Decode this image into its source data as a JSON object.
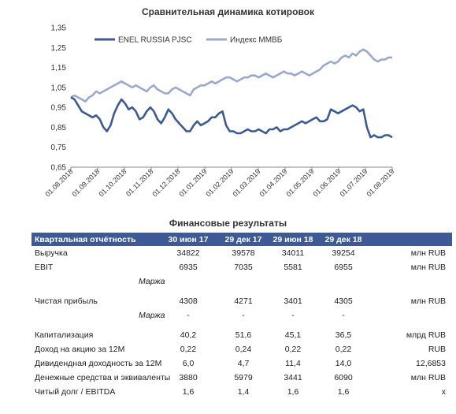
{
  "chart_data": {
    "type": "line",
    "title": "Сравнительная динамика котировок",
    "ylim": [
      0.65,
      1.35
    ],
    "y_ticks": [
      "0,65",
      "0,75",
      "0,85",
      "0,95",
      "1,05",
      "1,15",
      "1,25",
      "1,35"
    ],
    "x_ticks": [
      "01.08.2018",
      "01.09.2018",
      "01.10.2018",
      "01.11.2018",
      "01.12.2018",
      "01.01.2019",
      "01.02.2019",
      "01.03.2019",
      "01.04.2019",
      "01.05.2019",
      "01.06.2019",
      "01.07.2019",
      "01.08.2019"
    ],
    "legend_position": "top",
    "grid": false,
    "series": [
      {
        "name": "ENEL RUSSIA PJSC",
        "color": "#3d5a96",
        "values": [
          1.0,
          0.99,
          0.96,
          0.93,
          0.92,
          0.91,
          0.9,
          0.91,
          0.89,
          0.85,
          0.83,
          0.86,
          0.92,
          0.96,
          0.99,
          0.97,
          0.94,
          0.95,
          0.93,
          0.89,
          0.9,
          0.93,
          0.95,
          0.93,
          0.89,
          0.87,
          0.9,
          0.94,
          0.92,
          0.89,
          0.87,
          0.85,
          0.83,
          0.83,
          0.86,
          0.88,
          0.86,
          0.87,
          0.88,
          0.9,
          0.9,
          0.92,
          0.93,
          0.86,
          0.83,
          0.83,
          0.82,
          0.82,
          0.83,
          0.84,
          0.83,
          0.83,
          0.84,
          0.83,
          0.82,
          0.84,
          0.84,
          0.85,
          0.83,
          0.84,
          0.84,
          0.85,
          0.86,
          0.87,
          0.88,
          0.87,
          0.88,
          0.89,
          0.9,
          0.88,
          0.88,
          0.89,
          0.94,
          0.93,
          0.92,
          0.93,
          0.94,
          0.95,
          0.96,
          0.95,
          0.93,
          0.94,
          0.85,
          0.8,
          0.81,
          0.8,
          0.8,
          0.81,
          0.81,
          0.8
        ]
      },
      {
        "name": "Индекс ММВБ",
        "color": "#9aa9cf",
        "values": [
          1.0,
          1.01,
          1.0,
          0.99,
          0.98,
          1.0,
          1.01,
          1.03,
          1.02,
          1.03,
          1.04,
          1.05,
          1.06,
          1.07,
          1.08,
          1.07,
          1.06,
          1.05,
          1.06,
          1.05,
          1.04,
          1.03,
          1.05,
          1.06,
          1.04,
          1.03,
          1.02,
          1.02,
          1.04,
          1.05,
          1.04,
          1.03,
          1.02,
          1.01,
          1.04,
          1.05,
          1.06,
          1.06,
          1.07,
          1.08,
          1.07,
          1.08,
          1.09,
          1.1,
          1.1,
          1.09,
          1.08,
          1.09,
          1.1,
          1.1,
          1.11,
          1.11,
          1.1,
          1.11,
          1.12,
          1.11,
          1.1,
          1.11,
          1.12,
          1.13,
          1.12,
          1.12,
          1.11,
          1.12,
          1.13,
          1.12,
          1.11,
          1.12,
          1.13,
          1.14,
          1.16,
          1.17,
          1.18,
          1.17,
          1.18,
          1.2,
          1.21,
          1.2,
          1.22,
          1.21,
          1.23,
          1.24,
          1.23,
          1.21,
          1.19,
          1.18,
          1.19,
          1.19,
          1.2,
          1.2
        ]
      }
    ]
  },
  "financials": {
    "title": "Финансовые результаты",
    "header": [
      "Квартальная отчётность",
      "30 июн 17",
      "29 дек 17",
      "29 июн 18",
      "29 дек 18",
      ""
    ],
    "rows": [
      {
        "name": "Выручка",
        "values": [
          "34822",
          "39578",
          "34011",
          "39254"
        ],
        "unit": "млн RUB"
      },
      {
        "name": "EBIT",
        "values": [
          "6935",
          "7035",
          "5581",
          "6955"
        ],
        "unit": "млн RUB"
      },
      {
        "name": "Маржа",
        "values": [
          "",
          "",
          "",
          ""
        ],
        "unit": "",
        "italic": true
      },
      {
        "name": "Чистая прибыль",
        "values": [
          "4308",
          "4271",
          "3401",
          "4305"
        ],
        "unit": "млн RUB"
      },
      {
        "name": "Маржа",
        "values": [
          "-",
          "-",
          "-",
          "-"
        ],
        "unit": "",
        "italic": true
      },
      {
        "name": "Капитализация",
        "values": [
          "40,2",
          "51,6",
          "45,1",
          "36,5"
        ],
        "unit": "млрд RUB"
      },
      {
        "name": "Доход на акцию за 12М",
        "values": [
          "0,22",
          "0,24",
          "0,22",
          "0,22"
        ],
        "unit": "RUB"
      },
      {
        "name": "Дивидендная доходность за 12М",
        "values": [
          "6,0",
          "4,7",
          "11,4",
          "14,0"
        ],
        "unit": "12,6853"
      },
      {
        "name": "Денежные средства и эквиваленты",
        "values": [
          "3880",
          "5979",
          "3441",
          "6090"
        ],
        "unit": "млн RUB"
      },
      {
        "name": "Читый долг / EBITDA",
        "values": [
          "1,6",
          "1,4",
          "1,6",
          "1,6"
        ],
        "unit": "x"
      }
    ]
  }
}
